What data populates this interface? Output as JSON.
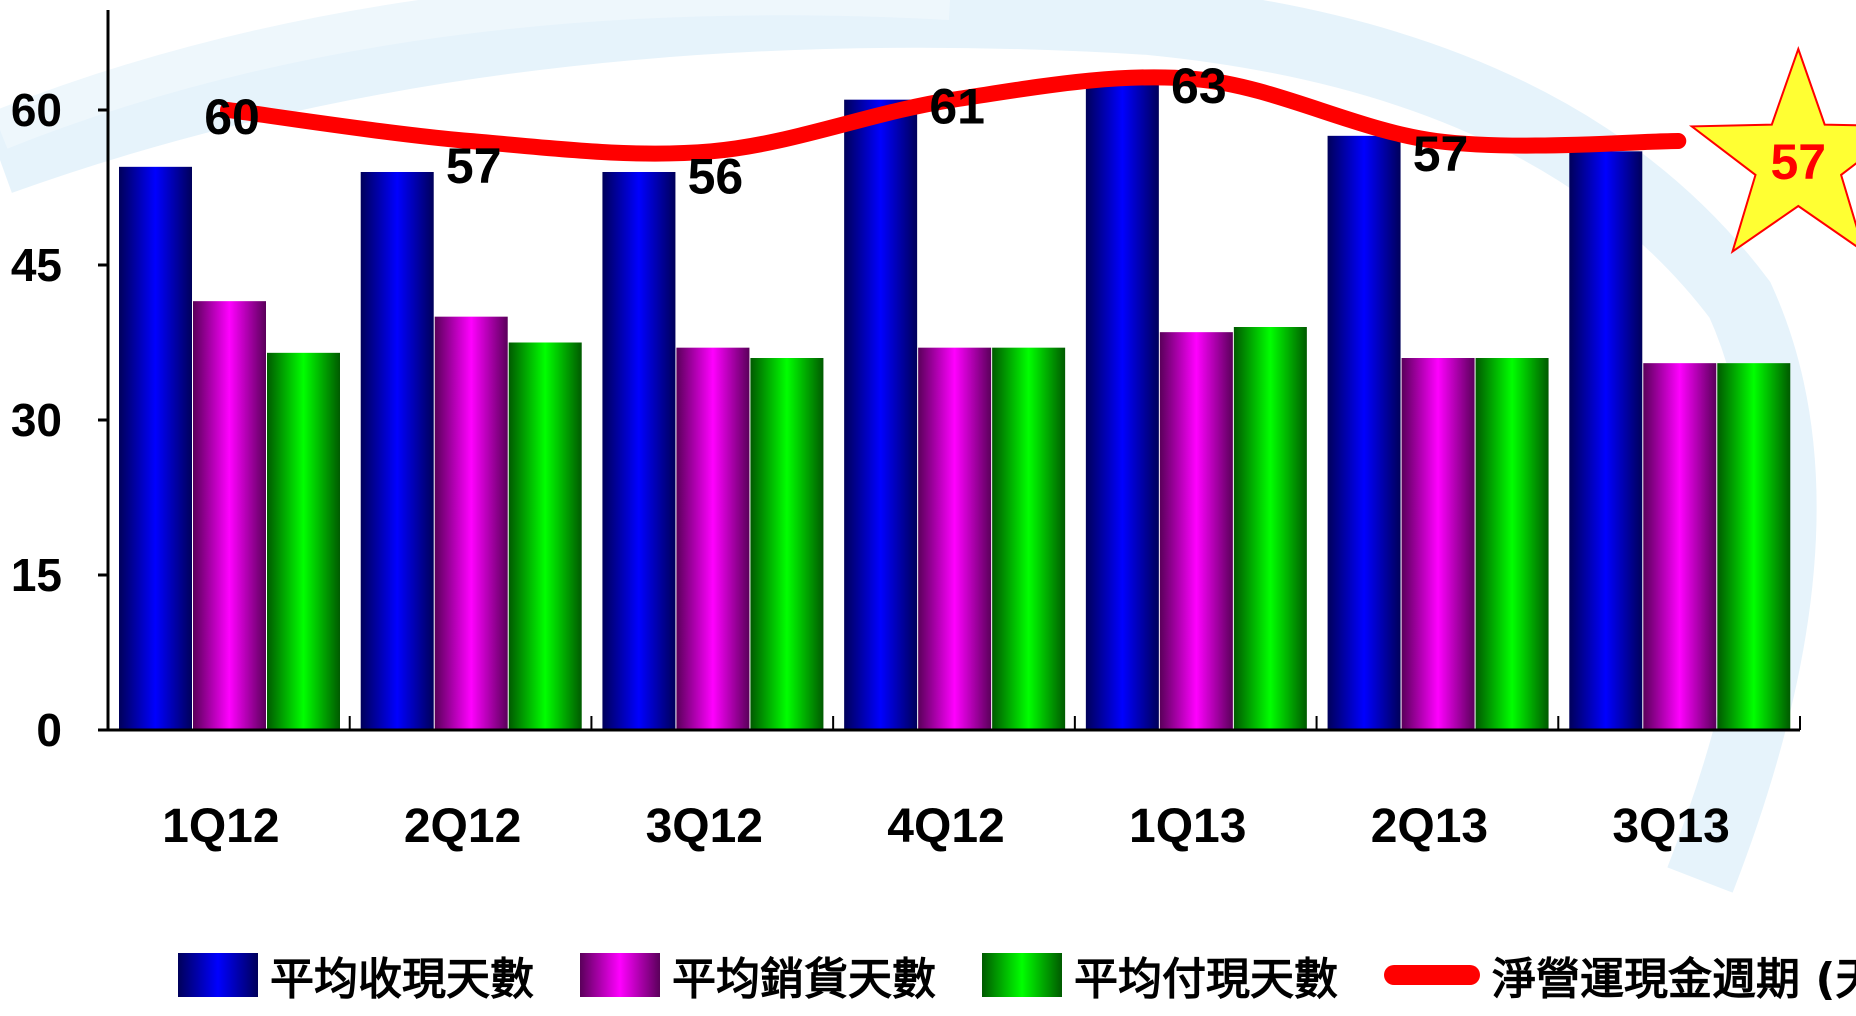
{
  "chart_data": {
    "type": "bar",
    "categories": [
      "1Q12",
      "2Q12",
      "3Q12",
      "4Q12",
      "1Q13",
      "2Q13",
      "3Q13"
    ],
    "series": [
      {
        "name": "平均收現天數",
        "kind": "bar",
        "color": "#0000cc",
        "values": [
          54.5,
          54,
          54,
          61,
          63,
          57.5,
          56
        ]
      },
      {
        "name": "平均銷貨天數",
        "kind": "bar",
        "color": "#dd00dd",
        "values": [
          41.5,
          40,
          37,
          37,
          38.5,
          36,
          35.5
        ]
      },
      {
        "name": "平均付現天數",
        "kind": "bar",
        "color": "#00cc00",
        "values": [
          36.5,
          37.5,
          36,
          37,
          39,
          36,
          35.5
        ]
      },
      {
        "name": "淨營運現金週期 (天數)",
        "kind": "line",
        "color": "#ff0000",
        "values": [
          60,
          57,
          56,
          61,
          63,
          57,
          57
        ]
      }
    ],
    "line_labels": [
      "60",
      "57",
      "56",
      "61",
      "63",
      "57",
      "57"
    ],
    "highlight": {
      "index": 6,
      "shape": "star",
      "fill": "#ffff33",
      "stroke": "#ff0000",
      "label_color": "#ff0000"
    },
    "yticks": [
      "0",
      "15",
      "30",
      "45",
      "60"
    ],
    "ylim": [
      0,
      68
    ],
    "grid": false,
    "legend_position": "bottom"
  }
}
